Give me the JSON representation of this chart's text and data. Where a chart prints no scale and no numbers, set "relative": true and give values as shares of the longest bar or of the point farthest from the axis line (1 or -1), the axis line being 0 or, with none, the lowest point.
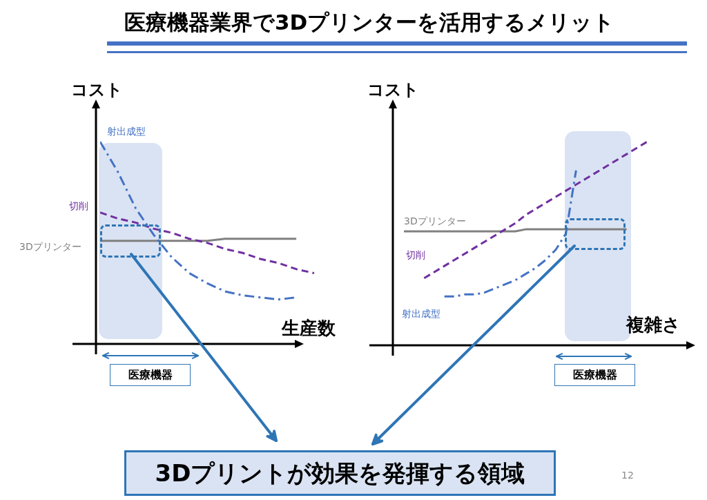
{
  "chart_data": [
    {
      "type": "line",
      "title": "医療機器業界で3Dプリンターを活用するメリット",
      "xlabel": "生産数",
      "ylabel": "コスト",
      "relative": true,
      "categories": [
        null,
        null,
        null,
        null,
        null,
        null,
        null,
        null,
        null,
        null,
        null,
        null,
        null
      ],
      "series": [
        {
          "name": "射出成型",
          "color": "#4472c4",
          "line_style": "dashdot",
          "values": [
            1,
            0.85,
            0.67,
            0.54,
            0.43,
            0.35,
            0.3,
            0.26,
            0.24,
            0.23,
            0.22,
            0.23,
            null
          ]
        },
        {
          "name": "切削",
          "color": "#7030a0",
          "line_style": "dashed",
          "values": [
            0.65,
            0.62,
            0.6,
            0.57,
            0.55,
            0.52,
            0.5,
            0.47,
            0.45,
            0.42,
            0.4,
            0.37,
            0.35
          ]
        },
        {
          "name": "3Dプリンター",
          "color": "#808080",
          "line_style": "solid",
          "values": [
            0.51,
            0.51,
            0.51,
            0.51,
            0.51,
            0.51,
            0.51,
            0.52,
            0.52,
            0.52,
            0.52,
            0.52,
            null
          ]
        }
      ],
      "annotations": [
        "医療機器",
        "3Dプリントが効果を発揮する領域",
        "12"
      ]
    },
    {
      "type": "line",
      "xlabel": "複雑さ",
      "ylabel": "コスト",
      "relative": true,
      "categories": [
        null,
        null,
        null,
        null,
        null,
        null,
        null,
        null,
        null,
        null,
        null,
        null,
        null,
        null,
        null,
        null,
        null,
        null,
        null,
        null,
        null,
        null,
        null,
        null,
        null
      ],
      "series": [
        {
          "name": "射出成型",
          "color": "#4472c4",
          "line_style": "dashdot",
          "values": [
            null,
            null,
            null,
            null,
            0.24,
            0.24,
            0.25,
            0.25,
            0.26,
            0.28,
            0.3,
            0.32,
            0.35,
            0.38,
            0.42,
            0.47,
            0.55,
            0.86,
            null,
            null,
            null,
            null,
            null,
            null,
            null
          ]
        },
        {
          "name": "切削",
          "color": "#7030a0",
          "line_style": "dashed",
          "values": [
            null,
            null,
            0.33,
            0.36,
            0.39,
            0.42,
            0.45,
            0.48,
            0.51,
            0.54,
            0.57,
            0.6,
            0.64,
            0.67,
            0.7,
            0.73,
            0.76,
            0.79,
            0.82,
            0.85,
            0.88,
            0.91,
            0.94,
            0.97,
            1.0
          ]
        },
        {
          "name": "3Dプリンター",
          "color": "#808080",
          "line_style": "solid",
          "values": [
            0.56,
            0.56,
            0.56,
            0.56,
            0.56,
            0.56,
            0.56,
            0.56,
            0.56,
            0.56,
            0.56,
            0.56,
            0.57,
            0.57,
            0.57,
            0.57,
            0.57,
            0.57,
            0.57,
            0.57,
            0.57,
            0.57,
            0.57,
            null,
            null
          ]
        }
      ],
      "annotations": [
        "医療機器"
      ]
    }
  ]
}
